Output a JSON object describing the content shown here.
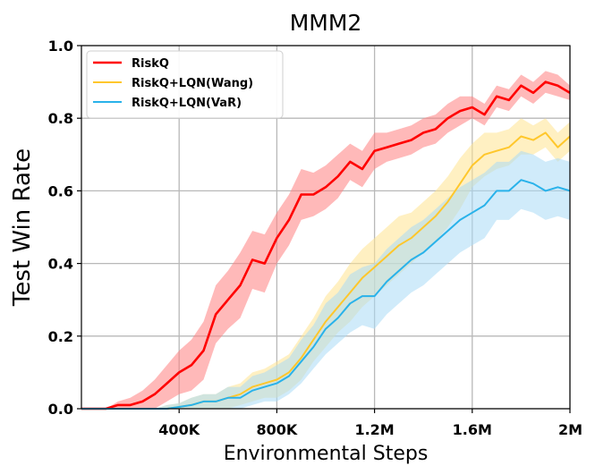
{
  "chart_data": {
    "type": "line",
    "title": "MMM2",
    "xlabel": "Environmental Steps",
    "ylabel": "Test Win Rate",
    "xlim": [
      0,
      2000000
    ],
    "ylim": [
      0.0,
      1.0
    ],
    "xticks": [
      {
        "value": 400000,
        "label": "400K"
      },
      {
        "value": 800000,
        "label": "800K"
      },
      {
        "value": 1200000,
        "label": "1.2M"
      },
      {
        "value": 1600000,
        "label": "1.6M"
      },
      {
        "value": 2000000,
        "label": "2M"
      }
    ],
    "yticks": [
      {
        "value": 0.0,
        "label": "0.0"
      },
      {
        "value": 0.2,
        "label": "0.2"
      },
      {
        "value": 0.4,
        "label": "0.4"
      },
      {
        "value": 0.6,
        "label": "0.6"
      },
      {
        "value": 0.8,
        "label": "0.8"
      },
      {
        "value": 1.0,
        "label": "1.0"
      }
    ],
    "grid": true,
    "legend_position": "top-left",
    "x": [
      0,
      100000,
      150000,
      200000,
      250000,
      300000,
      350000,
      400000,
      450000,
      500000,
      550000,
      600000,
      650000,
      700000,
      750000,
      800000,
      850000,
      900000,
      950000,
      1000000,
      1050000,
      1100000,
      1150000,
      1200000,
      1250000,
      1300000,
      1350000,
      1400000,
      1450000,
      1500000,
      1550000,
      1600000,
      1650000,
      1700000,
      1750000,
      1800000,
      1850000,
      1900000,
      1950000,
      2000000
    ],
    "series": [
      {
        "name": "RiskQ",
        "color": "#ff0000",
        "band_color": "#ff8080",
        "values": [
          0.0,
          0.0,
          0.01,
          0.01,
          0.02,
          0.04,
          0.07,
          0.1,
          0.12,
          0.16,
          0.26,
          0.3,
          0.34,
          0.41,
          0.4,
          0.47,
          0.52,
          0.59,
          0.59,
          0.61,
          0.64,
          0.68,
          0.66,
          0.71,
          0.72,
          0.73,
          0.74,
          0.76,
          0.77,
          0.8,
          0.82,
          0.83,
          0.81,
          0.86,
          0.85,
          0.89,
          0.87,
          0.9,
          0.89,
          0.87
        ],
        "band": [
          0.0,
          0.0,
          0.01,
          0.02,
          0.03,
          0.04,
          0.05,
          0.06,
          0.07,
          0.08,
          0.08,
          0.08,
          0.09,
          0.08,
          0.08,
          0.07,
          0.07,
          0.07,
          0.06,
          0.06,
          0.06,
          0.05,
          0.05,
          0.05,
          0.04,
          0.04,
          0.04,
          0.04,
          0.04,
          0.04,
          0.04,
          0.03,
          0.03,
          0.03,
          0.03,
          0.03,
          0.03,
          0.03,
          0.03,
          0.02
        ]
      },
      {
        "name": "RiskQ+LQN(Wang)",
        "color": "#ffc72c",
        "band_color": "#ffe48f",
        "values": [
          0.0,
          0.0,
          0.0,
          0.0,
          0.0,
          0.0,
          0.0,
          0.005,
          0.01,
          0.02,
          0.02,
          0.03,
          0.04,
          0.06,
          0.07,
          0.08,
          0.1,
          0.14,
          0.19,
          0.24,
          0.28,
          0.32,
          0.36,
          0.39,
          0.42,
          0.45,
          0.47,
          0.5,
          0.53,
          0.57,
          0.62,
          0.67,
          0.7,
          0.71,
          0.72,
          0.75,
          0.74,
          0.76,
          0.72,
          0.75
        ],
        "band": [
          0.0,
          0.0,
          0.0,
          0.0,
          0.0,
          0.0,
          0.01,
          0.01,
          0.02,
          0.02,
          0.02,
          0.03,
          0.03,
          0.04,
          0.04,
          0.05,
          0.05,
          0.06,
          0.06,
          0.07,
          0.07,
          0.08,
          0.08,
          0.08,
          0.08,
          0.08,
          0.07,
          0.07,
          0.07,
          0.07,
          0.07,
          0.06,
          0.06,
          0.05,
          0.05,
          0.05,
          0.04,
          0.04,
          0.04,
          0.04
        ]
      },
      {
        "name": "RiskQ+LQN(VaR)",
        "color": "#29b2ea",
        "band_color": "#a9dbf5",
        "values": [
          0.0,
          0.0,
          0.0,
          0.0,
          0.0,
          0.0,
          0.0,
          0.005,
          0.01,
          0.02,
          0.02,
          0.03,
          0.03,
          0.05,
          0.06,
          0.07,
          0.09,
          0.13,
          0.17,
          0.22,
          0.25,
          0.29,
          0.31,
          0.31,
          0.35,
          0.38,
          0.41,
          0.43,
          0.46,
          0.49,
          0.52,
          0.54,
          0.56,
          0.6,
          0.6,
          0.63,
          0.62,
          0.6,
          0.61,
          0.6
        ],
        "band": [
          0.0,
          0.0,
          0.0,
          0.0,
          0.0,
          0.0,
          0.01,
          0.01,
          0.02,
          0.02,
          0.02,
          0.03,
          0.03,
          0.04,
          0.04,
          0.05,
          0.05,
          0.06,
          0.06,
          0.07,
          0.07,
          0.08,
          0.08,
          0.09,
          0.09,
          0.09,
          0.09,
          0.09,
          0.09,
          0.09,
          0.09,
          0.09,
          0.09,
          0.08,
          0.08,
          0.08,
          0.08,
          0.08,
          0.08,
          0.08
        ]
      }
    ]
  }
}
